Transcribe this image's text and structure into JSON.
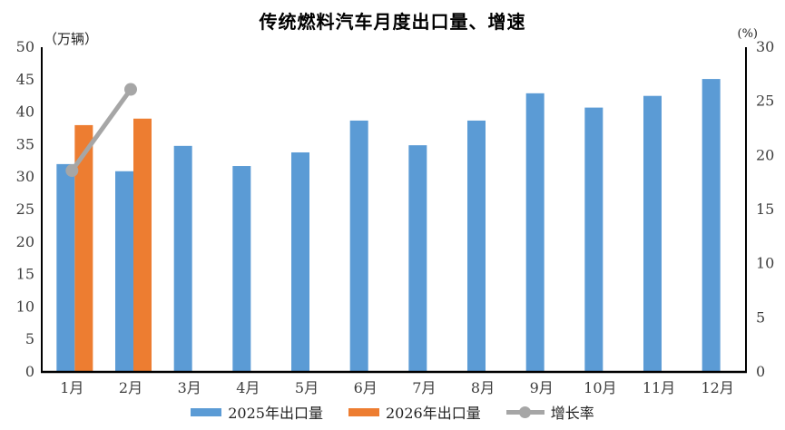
{
  "title": "传统燃料汽车月度出口量、增速",
  "left_axis": {
    "unit": "（万辆）",
    "min": 0,
    "max": 50,
    "step": 5
  },
  "right_axis": {
    "unit": "(%)",
    "min": 0,
    "max": 30,
    "step": 5
  },
  "colors": {
    "bar_2025": "#5B9BD5",
    "bar_2026": "#ED7D31",
    "growth_line": "#A6A6A6",
    "axis_line": "#000000",
    "tick_text": "#3d3d3d"
  },
  "chart_data": {
    "type": "bar",
    "title": "传统燃料汽车月度出口量、增速",
    "categories": [
      "1月",
      "2月",
      "3月",
      "4月",
      "5月",
      "6月",
      "7月",
      "8月",
      "9月",
      "10月",
      "11月",
      "12月"
    ],
    "series": [
      {
        "name": "2025年出口量",
        "type": "bar",
        "axis": "left",
        "color": "#5B9BD5",
        "values": [
          32.0,
          30.9,
          34.8,
          31.7,
          33.8,
          38.7,
          34.9,
          38.7,
          42.9,
          40.7,
          42.5,
          45.1
        ]
      },
      {
        "name": "2026年出口量",
        "type": "bar",
        "axis": "left",
        "color": "#ED7D31",
        "values": [
          38.0,
          39.0,
          null,
          null,
          null,
          null,
          null,
          null,
          null,
          null,
          null,
          null
        ]
      },
      {
        "name": "增长率",
        "type": "line",
        "axis": "right",
        "color": "#A6A6A6",
        "values": [
          18.6,
          26.1,
          null,
          null,
          null,
          null,
          null,
          null,
          null,
          null,
          null,
          null
        ]
      }
    ],
    "ylabel_left": "（万辆）",
    "ylabel_right": "(%)",
    "ylim_left": [
      0,
      50
    ],
    "ylim_right": [
      0,
      30
    ],
    "grid": false,
    "legend_position": "bottom"
  }
}
